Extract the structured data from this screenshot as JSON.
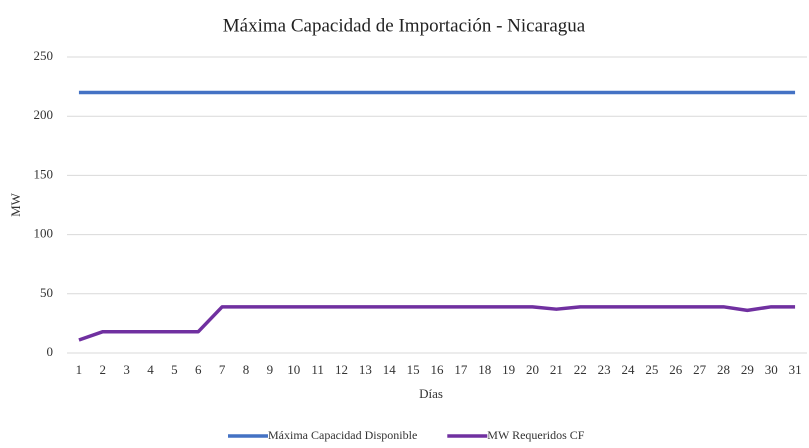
{
  "chart_data": {
    "type": "line",
    "title": "Máxima Capacidad de Importación - Nicaragua",
    "x_label": "Días",
    "y_label": "MW",
    "categories": [
      "1",
      "2",
      "3",
      "4",
      "5",
      "6",
      "7",
      "8",
      "9",
      "10",
      "11",
      "12",
      "13",
      "14",
      "15",
      "16",
      "17",
      "18",
      "19",
      "20",
      "21",
      "22",
      "23",
      "24",
      "25",
      "26",
      "27",
      "28",
      "29",
      "30",
      "31"
    ],
    "series": [
      {
        "name": "Máxima Capacidad Disponible",
        "color": "#4472c4",
        "values": [
          220,
          220,
          220,
          220,
          220,
          220,
          220,
          220,
          220,
          220,
          220,
          220,
          220,
          220,
          220,
          220,
          220,
          220,
          220,
          220,
          220,
          220,
          220,
          220,
          220,
          220,
          220,
          220,
          220,
          220,
          220
        ]
      },
      {
        "name": "MW Requeridos CF",
        "color": "#7030a0",
        "values": [
          11,
          18,
          18,
          18,
          18,
          18,
          39,
          39,
          39,
          39,
          39,
          39,
          39,
          39,
          39,
          39,
          39,
          39,
          39,
          39,
          37,
          39,
          39,
          39,
          39,
          39,
          39,
          39,
          36,
          39,
          39
        ]
      }
    ],
    "ylim": [
      0,
      250
    ],
    "yticks": [
      0,
      50,
      100,
      150,
      200,
      250
    ],
    "grid": true,
    "legend": "bottom"
  }
}
